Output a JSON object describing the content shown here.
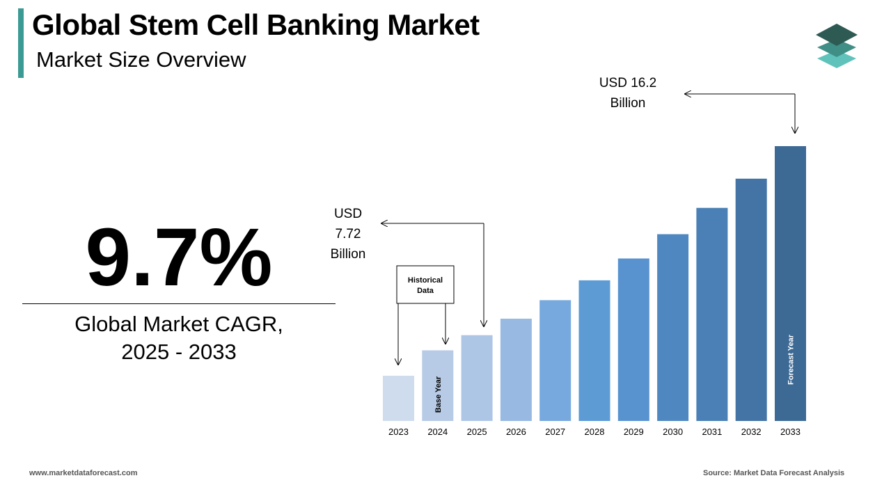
{
  "header": {
    "title": "Global Stem Cell Banking Market",
    "subtitle": "Market Size Overview"
  },
  "cagr": {
    "value": "9.7%",
    "label_line1": "Global Market CAGR,",
    "label_line2": "2025 - 2033"
  },
  "chart_data": {
    "type": "bar",
    "categories": [
      "2023",
      "2024",
      "2025",
      "2026",
      "2027",
      "2028",
      "2029",
      "2030",
      "2031",
      "2032",
      "2033"
    ],
    "values": [
      5.9,
      7.04,
      7.72,
      8.46,
      9.29,
      10.18,
      11.16,
      12.25,
      13.43,
      14.74,
      16.2
    ],
    "colors": [
      "#cfdcee",
      "#b7cbe6",
      "#aec6e6",
      "#97b9e2",
      "#77a9de",
      "#5d9bd5",
      "#5893d0",
      "#4f88c0",
      "#4a80b5",
      "#4474a5",
      "#3d6a94"
    ],
    "annotations": {
      "start_value": [
        "USD",
        "7.72",
        "Billion"
      ],
      "end_value": [
        "USD 16.2",
        "Billion"
      ],
      "historical": [
        "Historical",
        "Data"
      ],
      "base_year": "Base Year",
      "forecast_year": "Forecast Year"
    }
  },
  "footer": {
    "website": "www.marketdataforecast.com",
    "source": "Source: Market Data Forecast Analysis"
  }
}
